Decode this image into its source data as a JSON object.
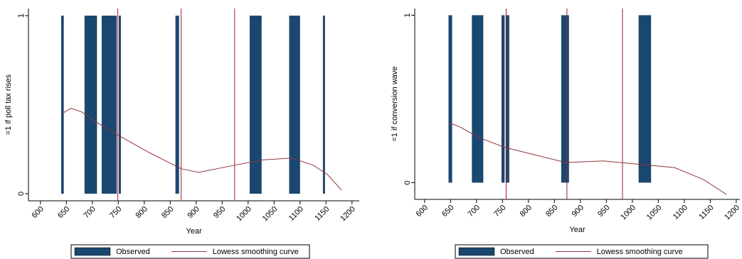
{
  "chart_data": [
    {
      "type": "bar-line",
      "ylabel": "=1 if poll tax rises",
      "xlabel": "Year",
      "xlim": [
        577,
        1214
      ],
      "xticks": [
        600,
        650,
        700,
        750,
        800,
        850,
        900,
        950,
        1000,
        1050,
        1100,
        1150,
        1200
      ],
      "ylim": [
        -0.04,
        1.04
      ],
      "yticks": [
        0,
        1
      ],
      "vlines": [
        749,
        871,
        974
      ],
      "vline_color": "#a0202a",
      "series": [
        {
          "name": "Observed",
          "type": "bar",
          "color": "#1a476f",
          "starts": [
            640,
            685,
            718,
            751,
            860,
            1003,
            1079,
            1144
          ],
          "ends": [
            645,
            709,
            747,
            755,
            867,
            1026,
            1100,
            1148
          ],
          "values": [
            1,
            1,
            1,
            1,
            1,
            1,
            1,
            1
          ]
        },
        {
          "name": "Lowess smoothing curve",
          "type": "line",
          "color": "#90353b",
          "x": [
            642,
            659,
            679,
            714,
            755,
            810,
            871,
            905,
            974,
            1029,
            1084,
            1125,
            1152,
            1180
          ],
          "values": [
            0.45,
            0.48,
            0.46,
            0.39,
            0.32,
            0.23,
            0.14,
            0.12,
            0.16,
            0.19,
            0.2,
            0.16,
            0.11,
            0.02
          ]
        }
      ]
    },
    {
      "type": "bar-line",
      "ylabel": "=1 if conversion wave",
      "xlabel": "Year",
      "xlim": [
        581,
        1207
      ],
      "xticks": [
        600,
        650,
        700,
        750,
        800,
        850,
        900,
        950,
        1000,
        1050,
        1100,
        1150,
        1200
      ],
      "ylim": [
        -0.1,
        1.04
      ],
      "yticks": [
        0,
        1
      ],
      "vlines": [
        757,
        874,
        981
      ],
      "vline_color": "#a0202a",
      "series": [
        {
          "name": "Observed",
          "type": "bar",
          "color": "#1a476f",
          "starts": [
            646,
            691,
            748,
            756,
            863,
            1012
          ],
          "ends": [
            653,
            713,
            754,
            763,
            878,
            1036
          ],
          "values": [
            1,
            1,
            1,
            1,
            1,
            1
          ]
        },
        {
          "name": "Lowess smoothing curve",
          "type": "line",
          "color": "#90353b",
          "x": [
            646,
            670,
            704,
            755,
            807,
            872,
            944,
            1012,
            1081,
            1136,
            1181
          ],
          "values": [
            0.36,
            0.33,
            0.27,
            0.21,
            0.17,
            0.12,
            0.13,
            0.11,
            0.09,
            0.02,
            -0.07
          ]
        }
      ]
    }
  ]
}
